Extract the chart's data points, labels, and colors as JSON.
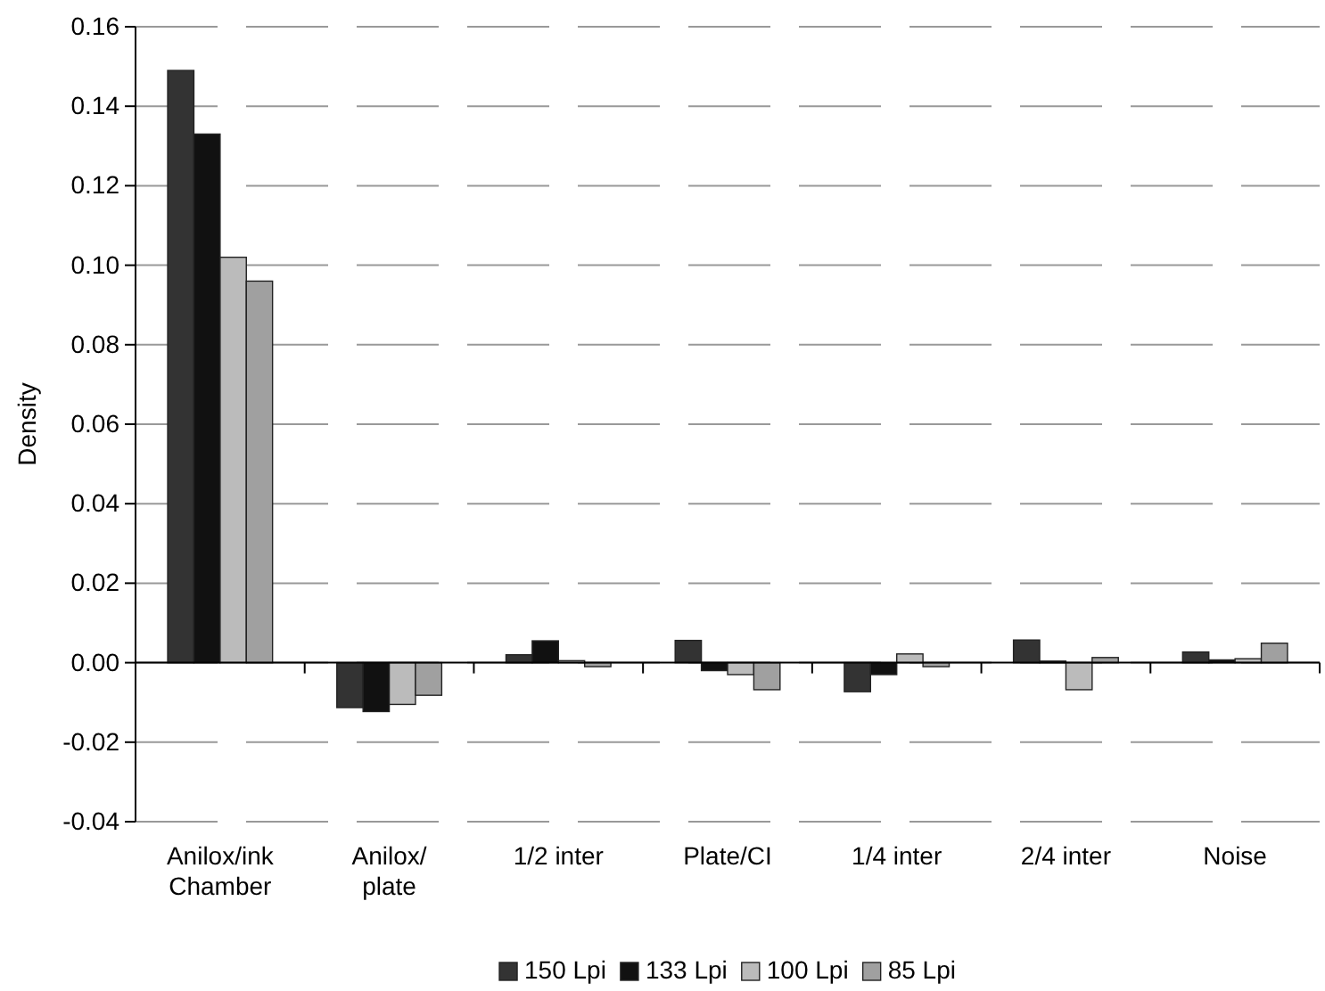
{
  "chart_data": {
    "type": "bar",
    "ylabel": "Density",
    "categories": [
      "Anilox/ink\nChamber",
      "Anilox/\nplate",
      "1/2 inter",
      "Plate/CI",
      "1/4 inter",
      "2/4 inter",
      "Noise"
    ],
    "series": [
      {
        "name": "150 Lpi",
        "color": "#333333",
        "values": [
          0.149,
          -0.0113,
          0.002,
          0.0056,
          -0.0073,
          0.0057,
          0.0027
        ]
      },
      {
        "name": "133 Lpi",
        "color": "#111111",
        "values": [
          0.133,
          -0.0123,
          0.0055,
          -0.002,
          -0.003,
          0.0004,
          0.0007
        ]
      },
      {
        "name": "100 Lpi",
        "color": "#bbbbbb",
        "values": [
          0.102,
          -0.0105,
          0.0005,
          -0.003,
          0.0022,
          -0.0068,
          0.001
        ]
      },
      {
        "name": "85 Lpi",
        "color": "#a0a0a0",
        "values": [
          0.096,
          -0.0082,
          -0.001,
          -0.0068,
          -0.001,
          0.0013,
          0.0049
        ]
      }
    ],
    "ylim": [
      -0.04,
      0.16
    ],
    "yticks": [
      {
        "value": -0.04,
        "label": "-0.04"
      },
      {
        "value": -0.02,
        "label": "-0.02"
      },
      {
        "value": 0,
        "label": "0.00"
      },
      {
        "value": 0.02,
        "label": "0.02"
      },
      {
        "value": 0.04,
        "label": "0.04"
      },
      {
        "value": 0.06,
        "label": "0.06"
      },
      {
        "value": 0.08,
        "label": "0.08"
      },
      {
        "value": 0.1,
        "label": "0.10"
      },
      {
        "value": 0.12,
        "label": "0.12"
      },
      {
        "value": 0.14,
        "label": "0.14"
      },
      {
        "value": 0.16,
        "label": "0.16"
      }
    ],
    "grid": "y",
    "legend": "bottom"
  }
}
